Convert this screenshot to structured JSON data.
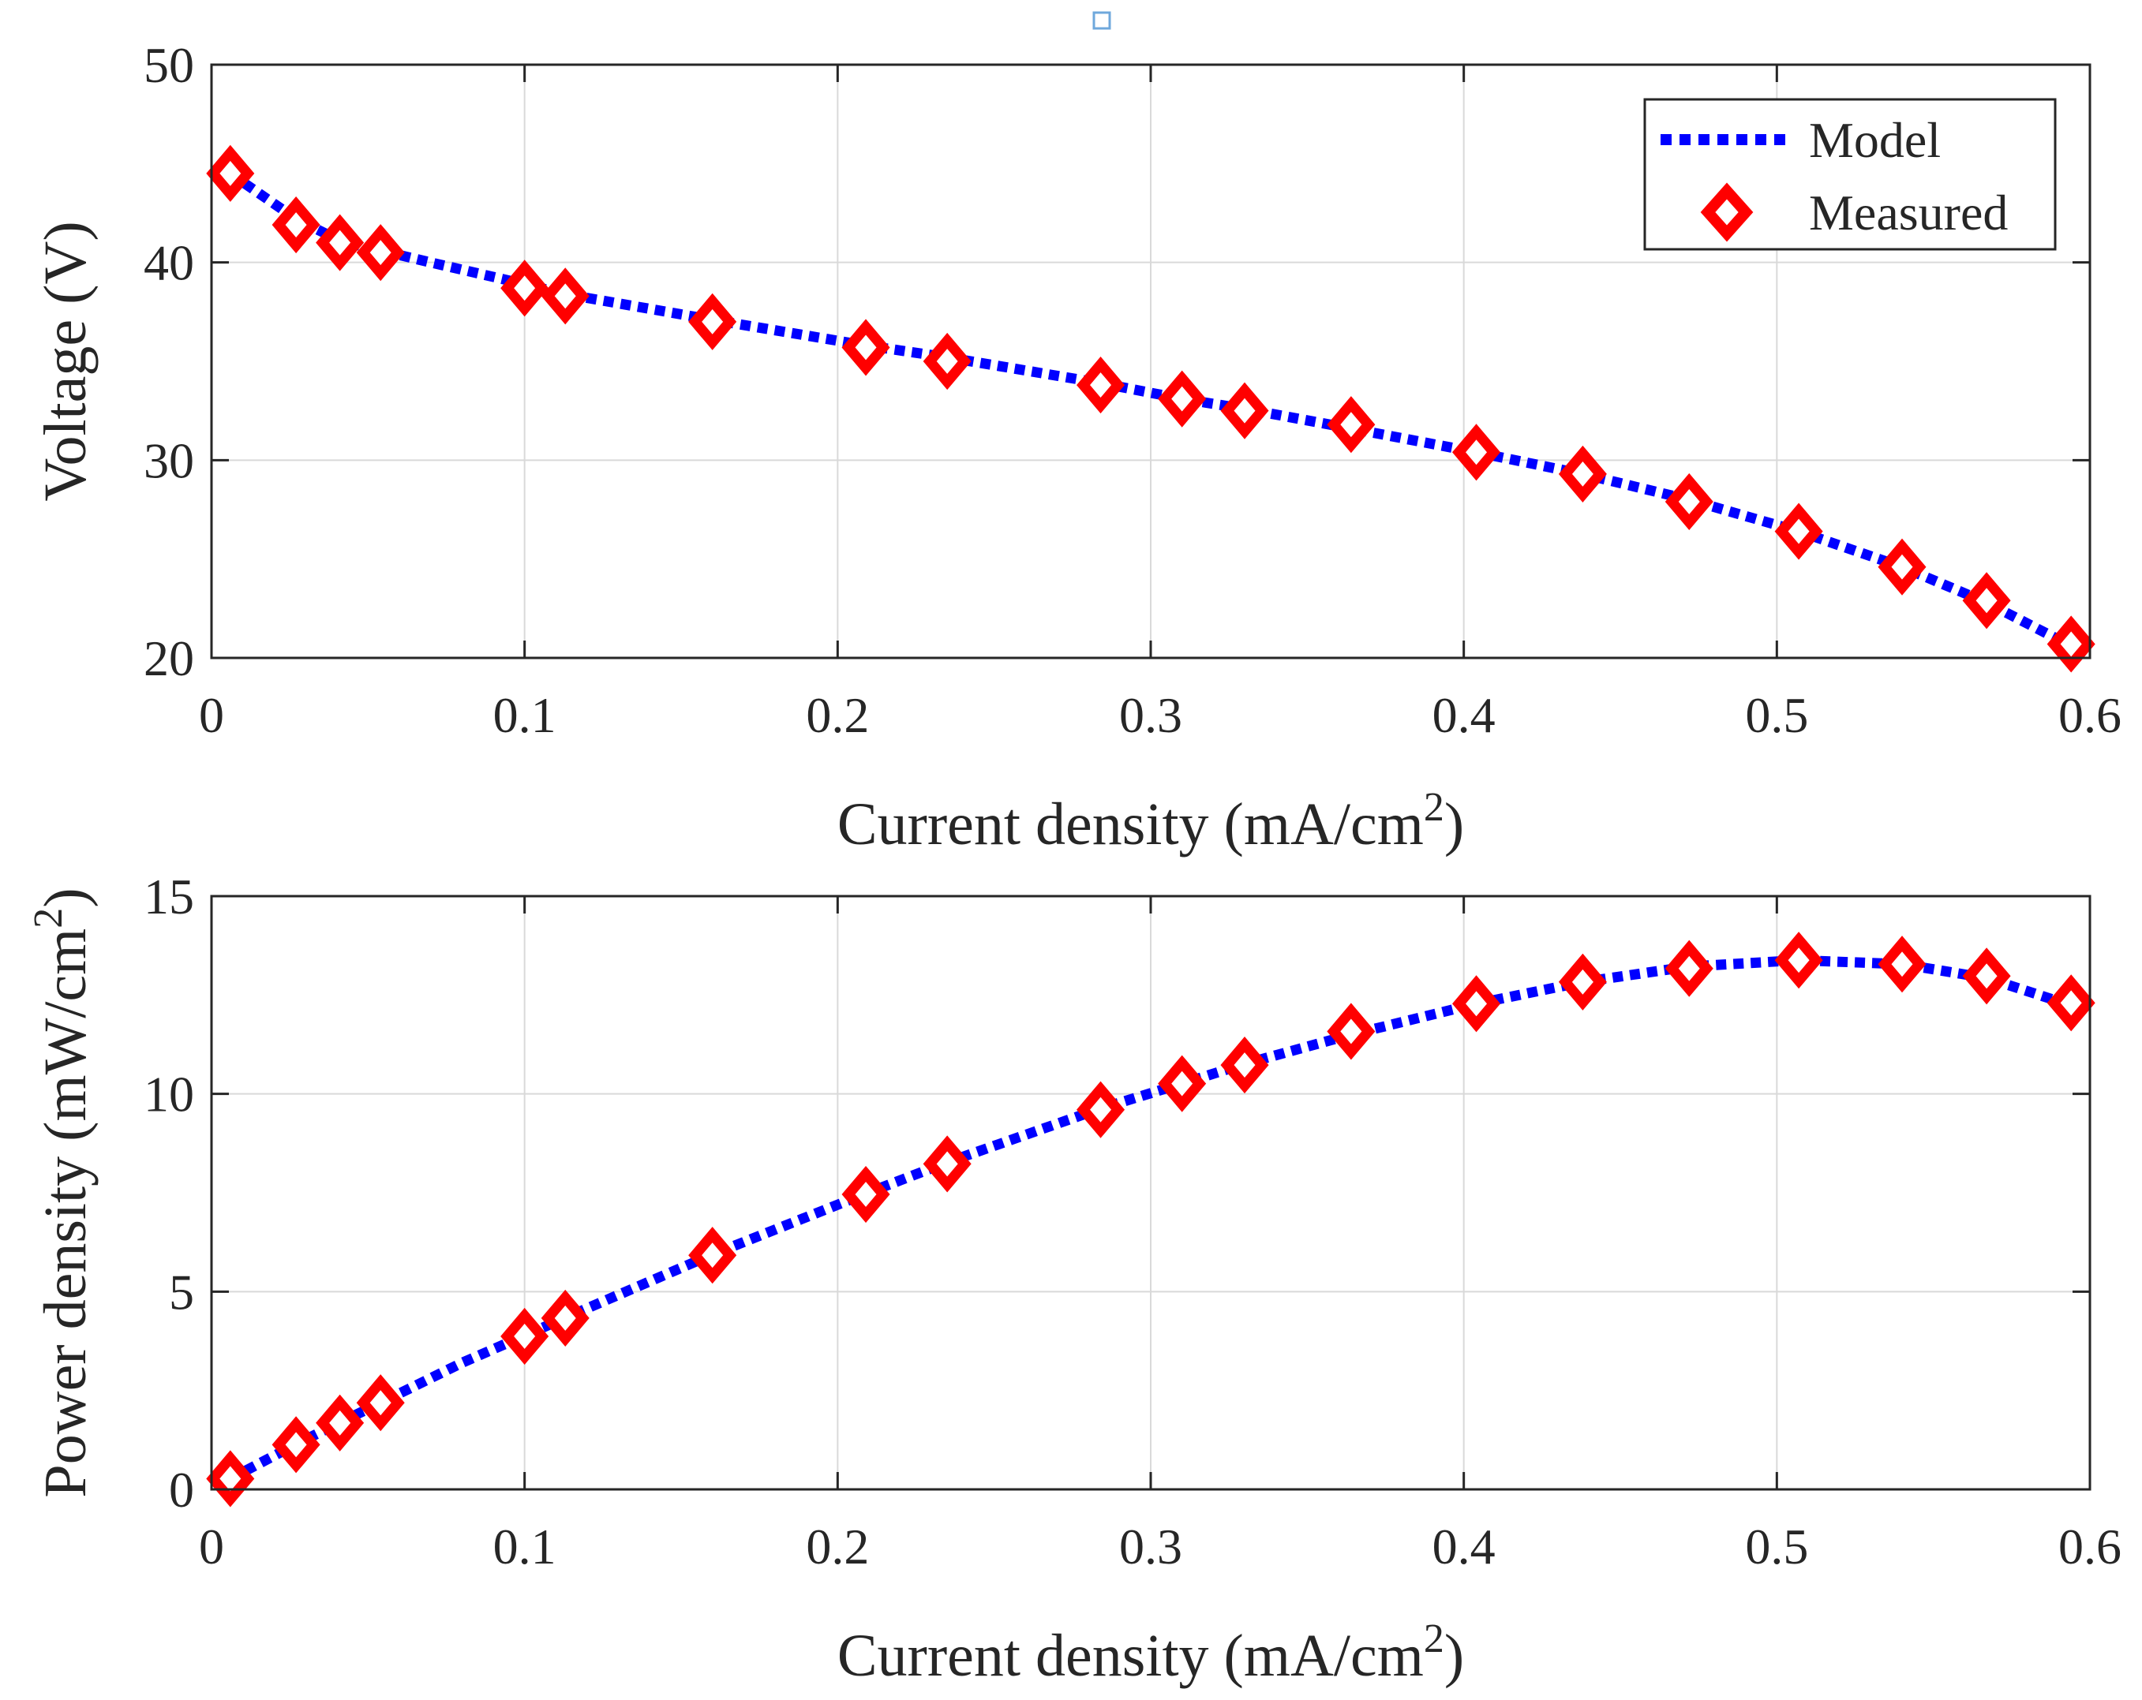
{
  "colors": {
    "model_line": "#0000ff",
    "marker": "#ff0000",
    "axis": "#262626",
    "grid": "#d9d9d9",
    "legend_border": "#262626",
    "stray_marker": "#6fa8dc"
  },
  "legend": {
    "model_label": "Model",
    "measured_label": "Measured"
  },
  "chart_data": [
    {
      "type": "line",
      "id": "voltage",
      "title": "",
      "xlabel": "Current density (mA/cm",
      "xlabel_sup": "2",
      "xlabel_end": ")",
      "ylabel": "Voltage (V)",
      "xlim": [
        0,
        0.6
      ],
      "ylim": [
        20,
        50
      ],
      "xticks": [
        0,
        0.1,
        0.2,
        0.3,
        0.4,
        0.5,
        0.6
      ],
      "xtick_labels": [
        "0",
        "0.1",
        "0.2",
        "0.3",
        "0.4",
        "0.5",
        "0.6"
      ],
      "yticks": [
        20,
        30,
        40,
        50
      ],
      "ytick_labels": [
        "20",
        "30",
        "40",
        "50"
      ],
      "grid": true,
      "legend_position": "top-right",
      "series": [
        {
          "name": "Model",
          "style": "dotted",
          "x": [
            0.006,
            0.027,
            0.041,
            0.054,
            0.07,
            0.1,
            0.113,
            0.16,
            0.209,
            0.235,
            0.284,
            0.31,
            0.33,
            0.364,
            0.404,
            0.438,
            0.472,
            0.507,
            0.54,
            0.567,
            0.594
          ],
          "y": [
            44.5,
            42.2,
            41.1,
            40.6,
            40.0,
            38.9,
            38.4,
            37.1,
            35.8,
            35.2,
            33.9,
            33.1,
            32.6,
            31.6,
            30.4,
            29.3,
            28.0,
            26.4,
            24.6,
            22.8,
            20.6
          ]
        },
        {
          "name": "Measured",
          "style": "diamond",
          "x": [
            0.006,
            0.027,
            0.041,
            0.054,
            0.1,
            0.113,
            0.16,
            0.209,
            0.235,
            0.284,
            0.31,
            0.33,
            0.364,
            0.404,
            0.438,
            0.472,
            0.507,
            0.54,
            0.567,
            0.594
          ],
          "y": [
            44.5,
            41.9,
            41.0,
            40.5,
            38.7,
            38.3,
            37.0,
            35.7,
            35.0,
            33.8,
            33.1,
            32.5,
            31.8,
            30.4,
            29.3,
            27.9,
            26.4,
            24.6,
            22.9,
            20.7
          ]
        }
      ]
    },
    {
      "type": "line",
      "id": "power",
      "title": "",
      "xlabel": "Current density (mA/cm",
      "xlabel_sup": "2",
      "xlabel_end": ")",
      "ylabel": "Power density (mW/cm",
      "ylabel_sup": "2",
      "ylabel_end": ")",
      "xlim": [
        0,
        0.6
      ],
      "ylim": [
        0,
        15
      ],
      "xticks": [
        0,
        0.1,
        0.2,
        0.3,
        0.4,
        0.5,
        0.6
      ],
      "xtick_labels": [
        "0",
        "0.1",
        "0.2",
        "0.3",
        "0.4",
        "0.5",
        "0.6"
      ],
      "yticks": [
        0,
        5,
        10,
        15
      ],
      "ytick_labels": [
        "0",
        "5",
        "10",
        "15"
      ],
      "grid": true,
      "series": [
        {
          "name": "Model",
          "style": "dotted",
          "x": [
            0.006,
            0.027,
            0.041,
            0.054,
            0.08,
            0.1,
            0.113,
            0.16,
            0.209,
            0.235,
            0.284,
            0.31,
            0.33,
            0.364,
            0.404,
            0.438,
            0.472,
            0.507,
            0.54,
            0.567,
            0.594
          ],
          "y": [
            0.27,
            1.14,
            1.69,
            2.19,
            3.2,
            3.89,
            4.34,
            5.94,
            7.48,
            8.27,
            9.63,
            10.26,
            10.76,
            11.5,
            12.28,
            12.83,
            13.22,
            13.38,
            13.28,
            12.93,
            12.24
          ]
        },
        {
          "name": "Measured",
          "style": "diamond",
          "x": [
            0.006,
            0.027,
            0.041,
            0.054,
            0.1,
            0.113,
            0.16,
            0.209,
            0.235,
            0.284,
            0.31,
            0.33,
            0.364,
            0.404,
            0.438,
            0.472,
            0.507,
            0.54,
            0.567,
            0.594
          ],
          "y": [
            0.27,
            1.13,
            1.68,
            2.19,
            3.87,
            4.33,
            5.92,
            7.46,
            8.23,
            9.6,
            10.26,
            10.73,
            11.58,
            12.28,
            12.83,
            13.17,
            13.38,
            13.28,
            12.98,
            12.3
          ]
        }
      ]
    }
  ]
}
